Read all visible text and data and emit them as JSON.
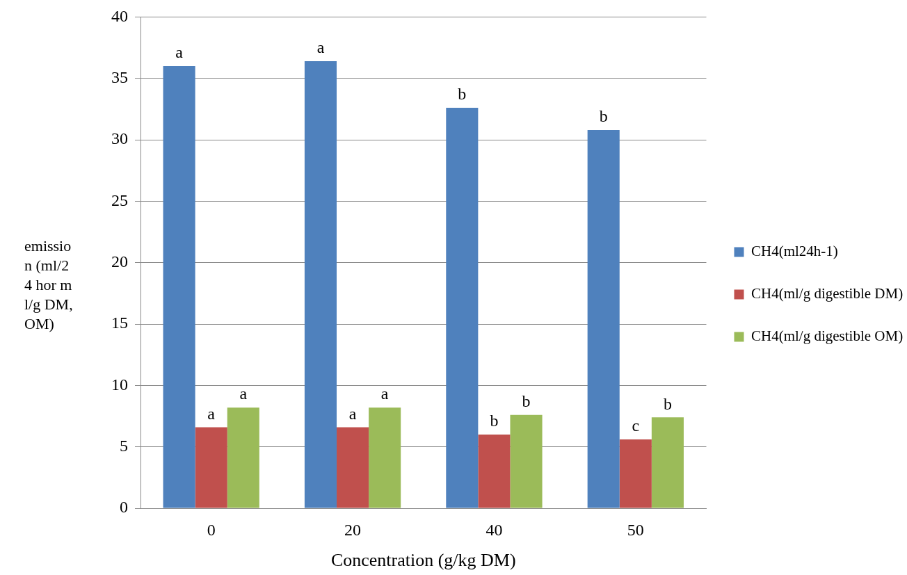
{
  "chart_data": {
    "type": "bar",
    "xlabel": "Concentration (g/kg DM)",
    "ylabel": "emission (ml/24 hor ml/g DM, OM)",
    "categories": [
      "0",
      "20",
      "40",
      "50"
    ],
    "series": [
      {
        "name": "CH4(ml24h-1)",
        "color": "#4f81bd",
        "values": [
          36,
          36.4,
          32.6,
          30.8
        ]
      },
      {
        "name": "CH4(ml/g digestible DM)",
        "color": "#c0504d",
        "values": [
          6.6,
          6.6,
          6.0,
          5.6
        ]
      },
      {
        "name": "CH4(ml/g digestible OM)",
        "color": "#9bbb59",
        "values": [
          8.2,
          8.2,
          7.6,
          7.4
        ]
      }
    ],
    "ylim": [
      0,
      40
    ],
    "yticks": [
      0,
      5,
      10,
      15,
      20,
      25,
      30,
      35,
      40
    ],
    "grid": "y",
    "legend": "right",
    "annotations": [
      "a",
      "a",
      "b",
      "b",
      "a",
      "a",
      "b",
      "c",
      "a",
      "a",
      "b",
      "b"
    ]
  }
}
